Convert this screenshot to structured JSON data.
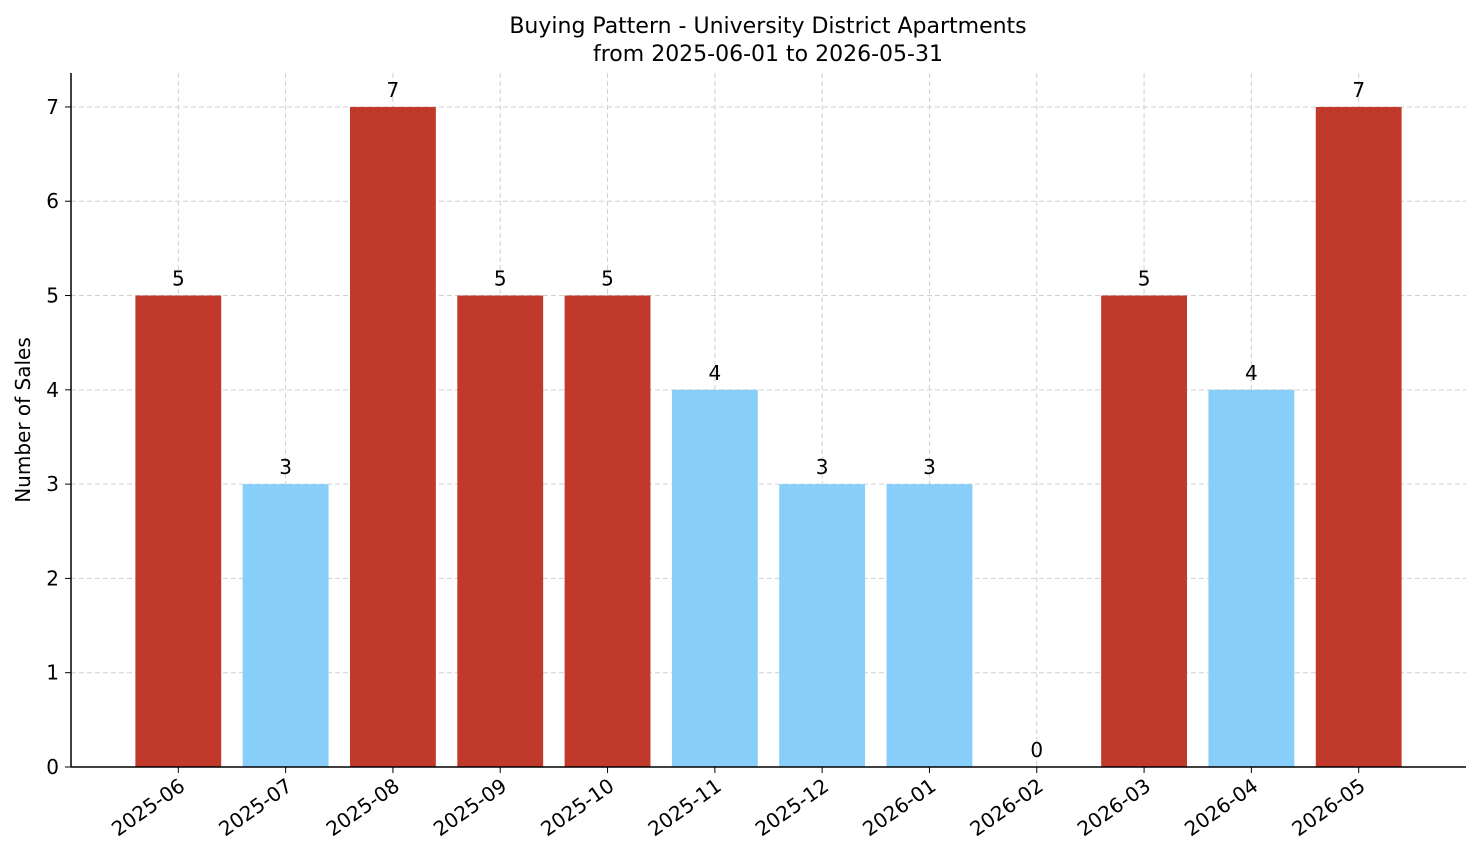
{
  "chart_data": {
    "type": "bar",
    "title": "Buying Pattern - University District Apartments",
    "subtitle": "from 2025-06-01 to 2026-05-31",
    "y_label": "Number of Sales",
    "categories": [
      "2025-06",
      "2025-07",
      "2025-08",
      "2025-09",
      "2025-10",
      "2025-11",
      "2025-12",
      "2026-01",
      "2026-02",
      "2026-03",
      "2026-04",
      "2026-05"
    ],
    "values": [
      5,
      3,
      7,
      5,
      5,
      4,
      3,
      3,
      0,
      5,
      4,
      7
    ],
    "colors": [
      "#c0392b",
      "#87cefa",
      "#c0392b",
      "#c0392b",
      "#c0392b",
      "#87cefa",
      "#87cefa",
      "#87cefa",
      "#87cefa",
      "#c0392b",
      "#87cefa",
      "#c0392b"
    ],
    "ylim": [
      0,
      7.36
    ],
    "yticks": [
      0,
      1,
      2,
      3,
      4,
      5,
      6,
      7
    ],
    "grid": true
  }
}
